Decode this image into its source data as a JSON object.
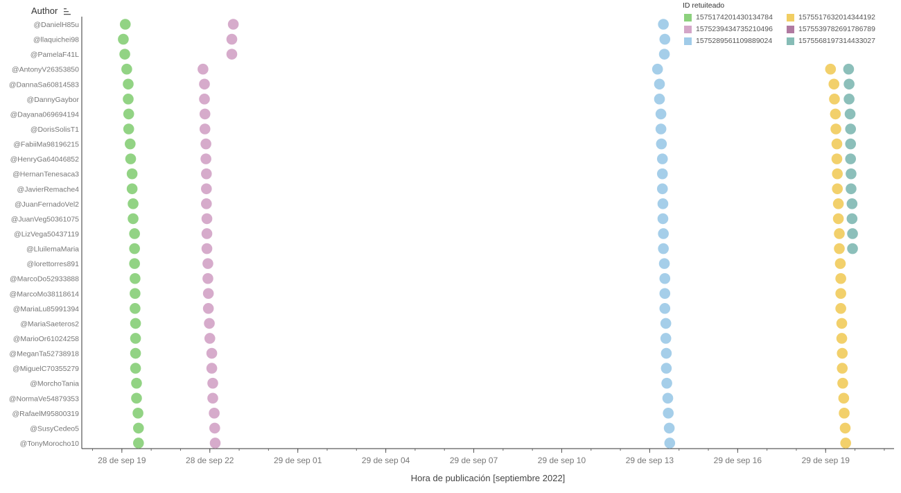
{
  "chart_data": {
    "type": "scatter",
    "title": "",
    "ylabel": "Author",
    "xlabel": "Hora de publicación [septiembre 2022]",
    "legend_title": "ID retuiteado",
    "legend_position": "top-right",
    "grid": false,
    "xlim": [
      "2022-09-28 17:38",
      "2022-09-29 21:20"
    ],
    "x_ticks": [
      {
        "t": "2022-09-28 19:00",
        "label": "28 de sep 19"
      },
      {
        "t": "2022-09-28 22:00",
        "label": "28 de sep 22"
      },
      {
        "t": "2022-09-29 01:00",
        "label": "29 de sep 01"
      },
      {
        "t": "2022-09-29 04:00",
        "label": "29 de sep 04"
      },
      {
        "t": "2022-09-29 07:00",
        "label": "29 de sep 07"
      },
      {
        "t": "2022-09-29 10:00",
        "label": "29 de sep 10"
      },
      {
        "t": "2022-09-29 13:00",
        "label": "29 de sep 13"
      },
      {
        "t": "2022-09-29 16:00",
        "label": "29 de sep 16"
      },
      {
        "t": "2022-09-29 19:00",
        "label": "29 de sep 19"
      }
    ],
    "authors": [
      "@DanielH85u",
      "@llaquichei98",
      "@PamelaF41L",
      "@AntonyV26353850",
      "@DannaSa60814583",
      "@DannyGaybor",
      "@Dayana069694194",
      "@DorisSolisT1",
      "@FabiiMa98196215",
      "@HenryGa64046852",
      "@HernanTenesaca3",
      "@JavierRemache4",
      "@JuanFernadoVel2",
      "@JuanVeg50361075",
      "@LizVega50437119",
      "@LluilemaMaria",
      "@lorettorres891",
      "@MarcoDo52933888",
      "@MarcoMo38118614",
      "@MariaLu85991394",
      "@MariaSaeteros2",
      "@MarioOr61024258",
      "@MeganTa52738918",
      "@MiguelC70355279",
      "@MorchoTania",
      "@NormaVe54879353",
      "@RafaelM95800319",
      "@SusyCedeo5",
      "@TonyMorocho10"
    ],
    "series": [
      {
        "name": "1575174201430134784",
        "color": "#8cd17d",
        "first_author_index": 0,
        "times": [
          "2022-09-28 19:07",
          "2022-09-28 19:03",
          "2022-09-28 19:06",
          "2022-09-28 19:10",
          "2022-09-28 19:13",
          "2022-09-28 19:13",
          "2022-09-28 19:14",
          "2022-09-28 19:14",
          "2022-09-28 19:17",
          "2022-09-28 19:18",
          "2022-09-28 19:21",
          "2022-09-28 19:21",
          "2022-09-28 19:23",
          "2022-09-28 19:23",
          "2022-09-28 19:26",
          "2022-09-28 19:26",
          "2022-09-28 19:26",
          "2022-09-28 19:27",
          "2022-09-28 19:27",
          "2022-09-28 19:27",
          "2022-09-28 19:28",
          "2022-09-28 19:28",
          "2022-09-28 19:28",
          "2022-09-28 19:28",
          "2022-09-28 19:30",
          "2022-09-28 19:30",
          "2022-09-28 19:33",
          "2022-09-28 19:34",
          "2022-09-28 19:34"
        ]
      },
      {
        "name": "1575239434735210496",
        "color": "#d4a6c8",
        "first_author_index": 0,
        "times": [
          "2022-09-28 22:48",
          "2022-09-28 22:45",
          "2022-09-28 22:45",
          "2022-09-28 21:46",
          "2022-09-28 21:49",
          "2022-09-28 21:49",
          "2022-09-28 21:50",
          "2022-09-28 21:50",
          "2022-09-28 21:52",
          "2022-09-28 21:52",
          "2022-09-28 21:53",
          "2022-09-28 21:53",
          "2022-09-28 21:53",
          "2022-09-28 21:54",
          "2022-09-28 21:54",
          "2022-09-28 21:54",
          "2022-09-28 21:56",
          "2022-09-28 21:56",
          "2022-09-28 21:57",
          "2022-09-28 21:57",
          "2022-09-28 21:59",
          "2022-09-28 22:00",
          "2022-09-28 22:04",
          "2022-09-28 22:04",
          "2022-09-28 22:06",
          "2022-09-28 22:06",
          "2022-09-28 22:09",
          "2022-09-28 22:10",
          "2022-09-28 22:11"
        ]
      },
      {
        "name": "1575289561109889024",
        "color": "#a0cbe8",
        "first_author_index": 0,
        "times": [
          "2022-09-29 13:28",
          "2022-09-29 13:31",
          "2022-09-29 13:30",
          "2022-09-29 13:16",
          "2022-09-29 13:20",
          "2022-09-29 13:20",
          "2022-09-29 13:23",
          "2022-09-29 13:23",
          "2022-09-29 13:24",
          "2022-09-29 13:26",
          "2022-09-29 13:26",
          "2022-09-29 13:26",
          "2022-09-29 13:27",
          "2022-09-29 13:27",
          "2022-09-29 13:28",
          "2022-09-29 13:28",
          "2022-09-29 13:30",
          "2022-09-29 13:31",
          "2022-09-29 13:31",
          "2022-09-29 13:31",
          "2022-09-29 13:33",
          "2022-09-29 13:33",
          "2022-09-29 13:34",
          "2022-09-29 13:34",
          "2022-09-29 13:35",
          "2022-09-29 13:37",
          "2022-09-29 13:38",
          "2022-09-29 13:40",
          "2022-09-29 13:41"
        ]
      },
      {
        "name": "1575517632014344192",
        "color": "#f1ce63",
        "first_author_index": 3,
        "times": [
          "2022-09-29 19:10",
          "2022-09-29 19:17",
          "2022-09-29 19:18",
          "2022-09-29 19:20",
          "2022-09-29 19:21",
          "2022-09-29 19:23",
          "2022-09-29 19:23",
          "2022-09-29 19:24",
          "2022-09-29 19:24",
          "2022-09-29 19:26",
          "2022-09-29 19:26",
          "2022-09-29 19:28",
          "2022-09-29 19:28",
          "2022-09-29 19:30",
          "2022-09-29 19:31",
          "2022-09-29 19:31",
          "2022-09-29 19:31",
          "2022-09-29 19:33",
          "2022-09-29 19:33",
          "2022-09-29 19:34",
          "2022-09-29 19:34",
          "2022-09-29 19:35",
          "2022-09-29 19:37",
          "2022-09-29 19:38",
          "2022-09-29 19:40",
          "2022-09-29 19:41"
        ]
      },
      {
        "name": "1575539782691786789",
        "color": "#b07aa1",
        "first_author_index": 0,
        "times": []
      },
      {
        "name": "1575568197314433027",
        "color": "#86bcb6",
        "first_author_index": 3,
        "times": [
          "2022-09-29 19:47",
          "2022-09-29 19:48",
          "2022-09-29 19:48",
          "2022-09-29 19:50",
          "2022-09-29 19:51",
          "2022-09-29 19:51",
          "2022-09-29 19:51",
          "2022-09-29 19:52",
          "2022-09-29 19:52",
          "2022-09-29 19:54",
          "2022-09-29 19:54",
          "2022-09-29 19:55",
          "2022-09-29 19:55"
        ]
      }
    ]
  }
}
